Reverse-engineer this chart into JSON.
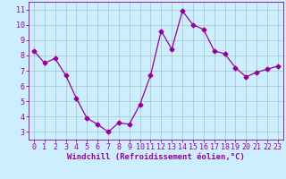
{
  "x": [
    0,
    1,
    2,
    3,
    4,
    5,
    6,
    7,
    8,
    9,
    10,
    11,
    12,
    13,
    14,
    15,
    16,
    17,
    18,
    19,
    20,
    21,
    22,
    23
  ],
  "y": [
    8.3,
    7.5,
    7.8,
    6.7,
    5.2,
    3.9,
    3.5,
    3.0,
    3.6,
    3.5,
    4.8,
    6.7,
    9.6,
    8.4,
    10.9,
    10.0,
    9.7,
    8.3,
    8.1,
    7.2,
    6.6,
    6.9,
    7.1,
    7.3
  ],
  "line_color": "#990099",
  "marker": "D",
  "marker_size": 2.5,
  "bg_color": "#cceeff",
  "grid_color": "#aacccc",
  "xlabel": "Windchill (Refroidissement éolien,°C)",
  "text_color": "#990099",
  "xlabel_fontsize": 6.5,
  "ylabel_ticks": [
    3,
    4,
    5,
    6,
    7,
    8,
    9,
    10,
    11
  ],
  "xlim": [
    -0.5,
    23.5
  ],
  "ylim": [
    2.5,
    11.5
  ],
  "tick_fontsize": 6.0
}
